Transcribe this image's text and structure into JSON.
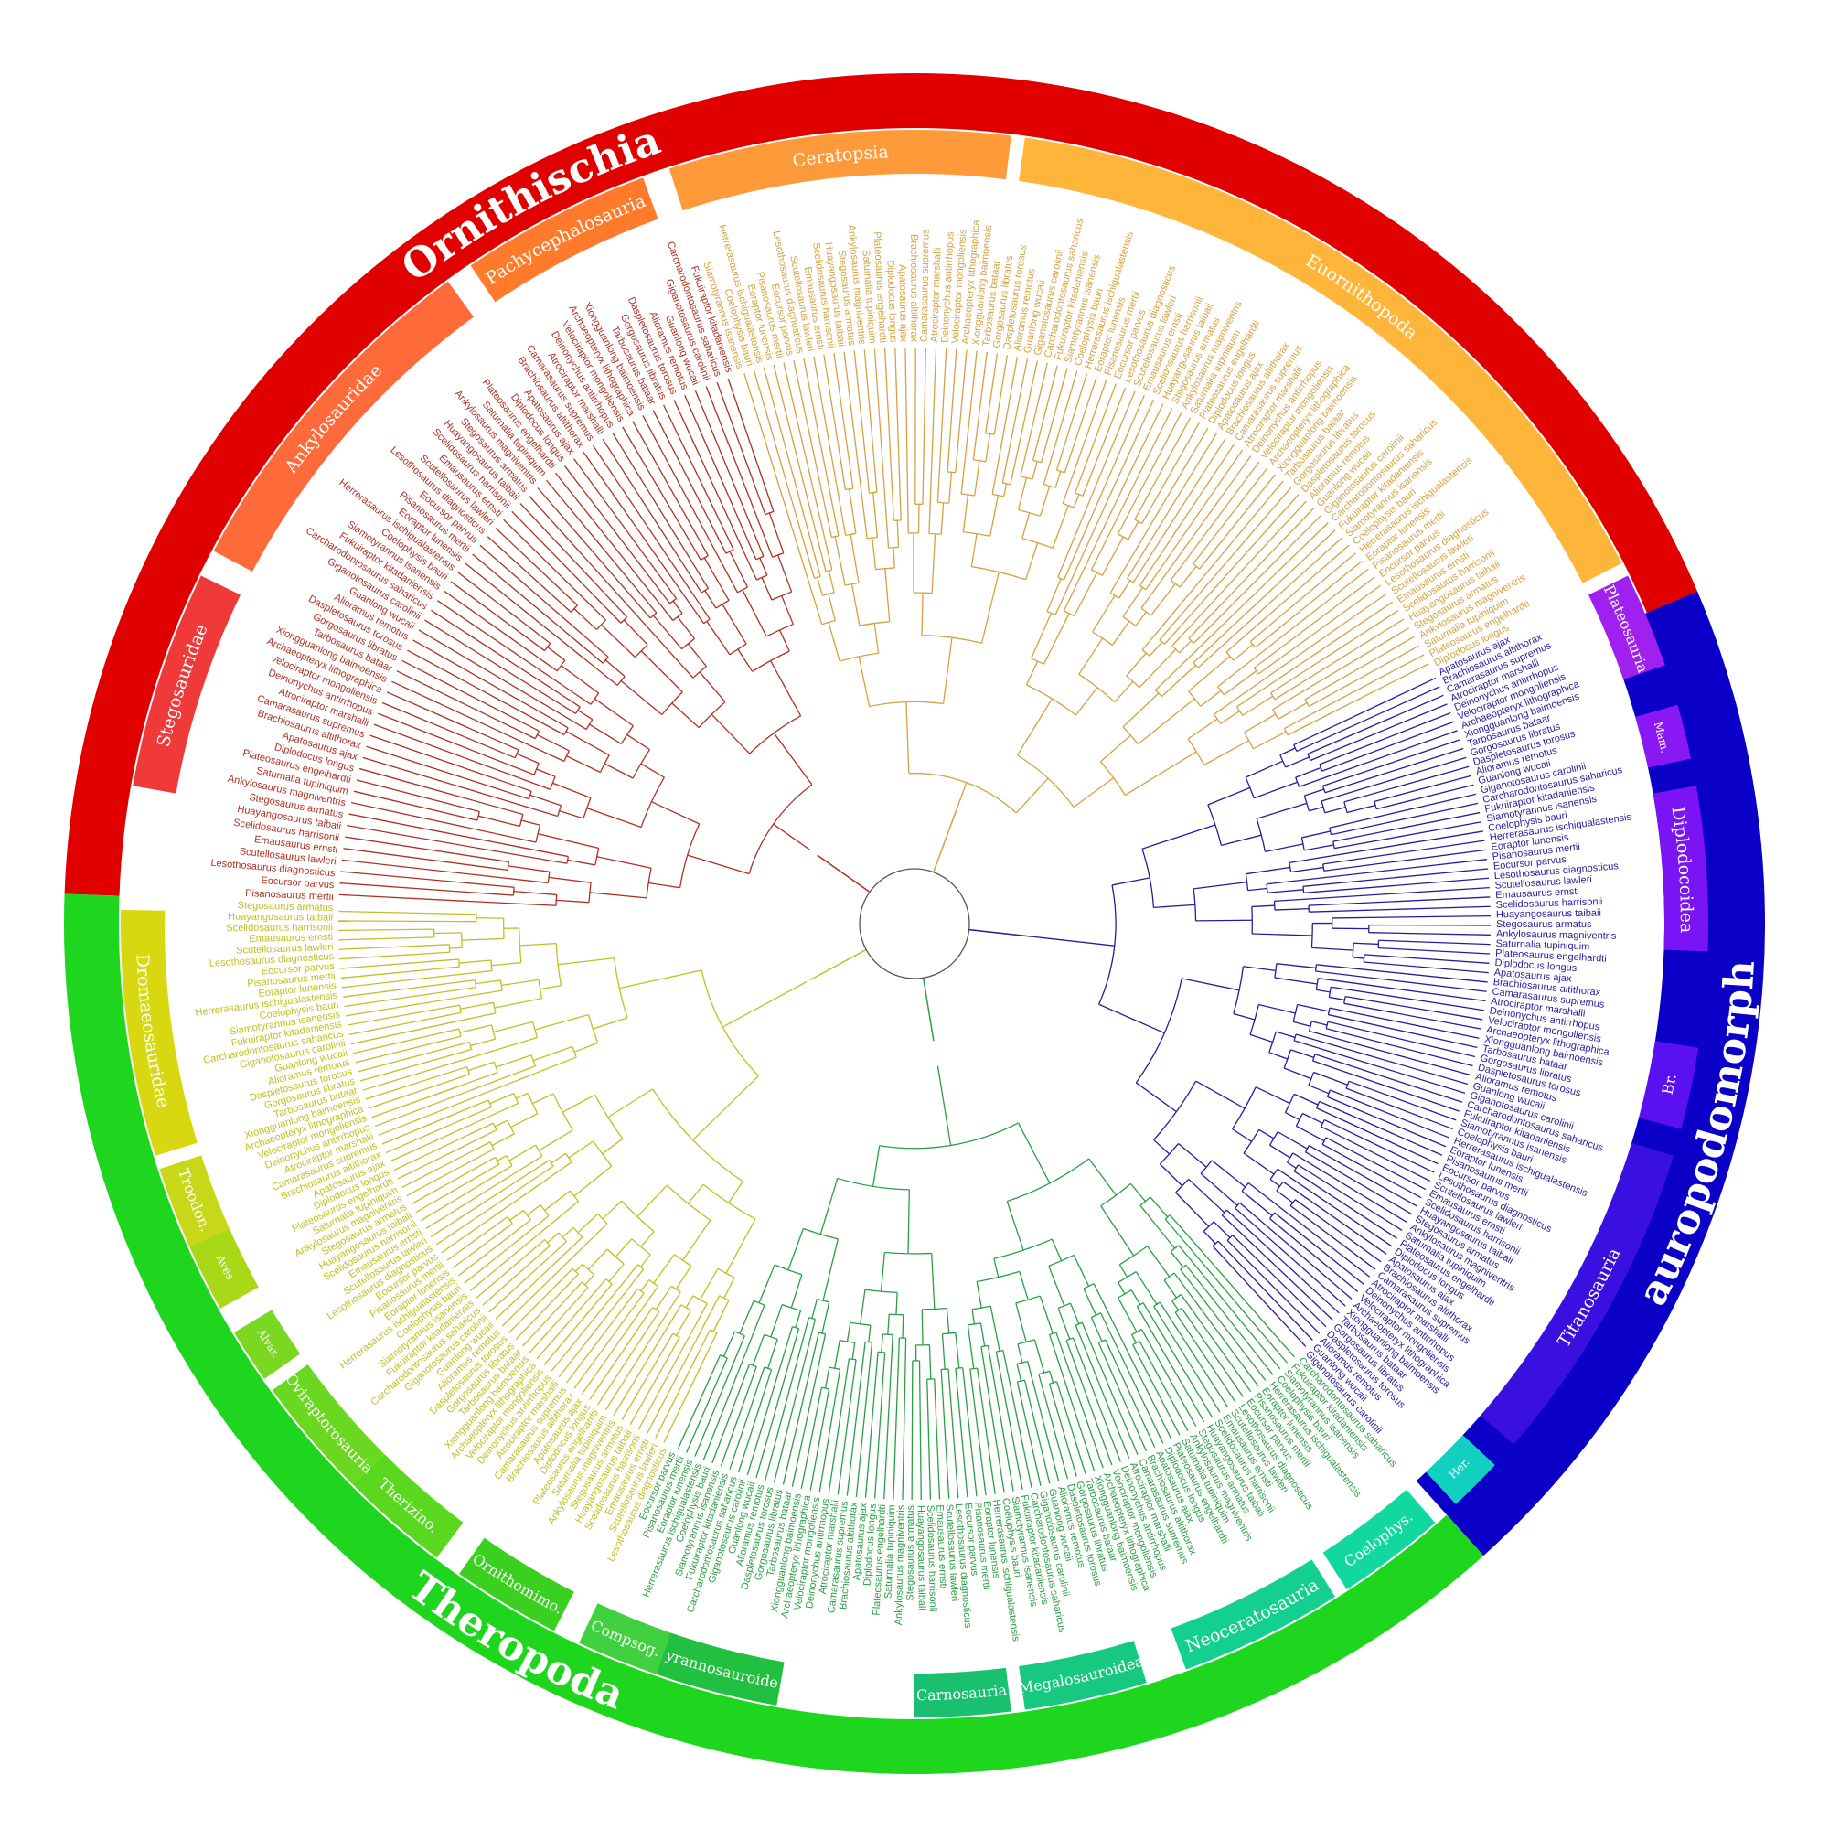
{
  "outer_clades": [
    {
      "name": "Ornithischia",
      "color": "#e00000"
    },
    {
      "name": "Sauropodomorpha",
      "color": "#0a00c8"
    },
    {
      "name": "Theropoda",
      "color": "#1fd61f"
    }
  ],
  "inner_clades": [
    {
      "name": "Stegosauridae",
      "color": "#f03a3a"
    },
    {
      "name": "Ankylosauridae",
      "color": "#ff6a3a"
    },
    {
      "name": "Pachycephalosauria",
      "color": "#ff7a2a"
    },
    {
      "name": "Ceratopsia",
      "color": "#ff9a3a"
    },
    {
      "name": "Euornithopoda",
      "color": "#ffb53a"
    },
    {
      "name": "Plateosauria",
      "color": "#a020f0"
    },
    {
      "name": "Mam.",
      "color": "#8a18f5"
    },
    {
      "name": "Diplodocoidea",
      "color": "#7a14f5"
    },
    {
      "name": "Br.",
      "color": "#5a10f0"
    },
    {
      "name": "Titanosauria",
      "color": "#3a10e0"
    },
    {
      "name": "Her.",
      "color": "#12d0c0"
    },
    {
      "name": "Coelophys.",
      "color": "#12d8a0"
    },
    {
      "name": "Neoceratosauria",
      "color": "#14d090"
    },
    {
      "name": "Megalosauroidea",
      "color": "#16c880"
    },
    {
      "name": "Carnosauria",
      "color": "#18c070"
    },
    {
      "name": "Tyrannosauroidea",
      "color": "#22c040"
    },
    {
      "name": "Compsog.",
      "color": "#40d040"
    },
    {
      "name": "Ornithomimo.",
      "color": "#3ad020"
    },
    {
      "name": "Therizino.",
      "color": "#5ad820"
    },
    {
      "name": "Oviraptorosauria",
      "color": "#6ad820"
    },
    {
      "name": "Alvar.",
      "color": "#7ad820"
    },
    {
      "name": "Aves",
      "color": "#a8d818"
    },
    {
      "name": "Troodon.",
      "color": "#c8d818"
    },
    {
      "name": "Dromaeosauridae",
      "color": "#d8d810"
    }
  ],
  "group_colors": {
    "ornithischia": "#b03020",
    "euornithopoda": "#d8a040",
    "sauropodomorpha": "#2a1aa0",
    "theropoda": "#28a040",
    "paraves": "#c0c020"
  },
  "taxa_sample": [
    "Pisanosaurus mertii",
    "Eocursor parvus",
    "Lesothosaurus diagnosticus",
    "Scutellosaurus lawleri",
    "Emausaurus ernsti",
    "Scelidosaurus harrisonii",
    "Huayangosaurus taibaii",
    "Stegosaurus armatus",
    "Ankylosaurus magniventris",
    "Saturnalia tupiniquim",
    "Plateosaurus engelhardti",
    "Diplodocus longus",
    "Apatosaurus ajax",
    "Brachiosaurus altithorax",
    "Camarasaurus supremus",
    "Atrociraptor marshalli",
    "Deinonychus antirrhopus",
    "Velociraptor mongoliensis",
    "Archaeopteryx lithographica",
    "Xiongguanlong baimoensis",
    "Tarbosaurus bataar",
    "Gorgosaurus libratus",
    "Daspletosaurus torosus",
    "Alioramus remotus",
    "Guanlong wucaii",
    "Giganotosaurus carolinii",
    "Carcharodontosaurus saharicus",
    "Fukuiraptor kitadaniensis",
    "Siamotyrannus isanensis",
    "Coelophysis bauri",
    "Herrerasaurus ischigualastensis",
    "Eoraptor lunensis"
  ]
}
